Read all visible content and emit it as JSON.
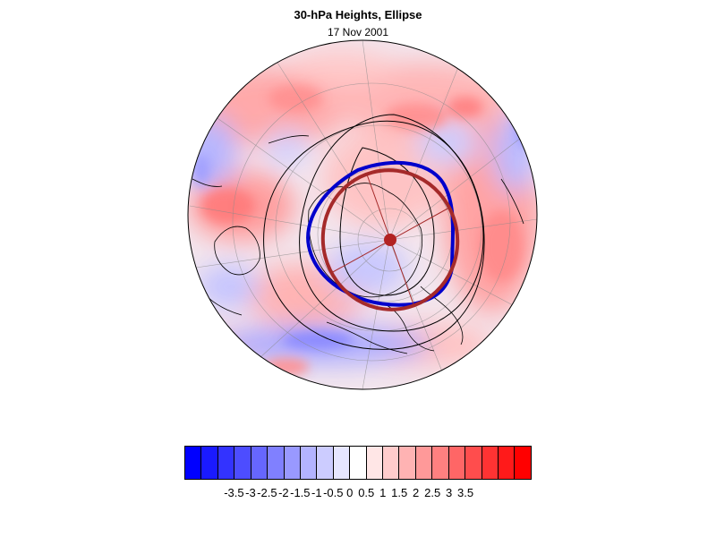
{
  "title": "30-hPa Heights, Ellipse",
  "date": "17 Nov 2001",
  "map": {
    "projection": "polar stereographic",
    "colors": {
      "anomaly_positive": "#ff2a2a",
      "anomaly_negative": "#2222ff",
      "height_contours": "#000000",
      "polar_vortex_edge": "#0000cc",
      "fitted_ellipse": "#a52a2a",
      "ellipse_center": "#b22222"
    },
    "layers": [
      "height anomaly shading",
      "30-hPa height contours",
      "coastlines",
      "vortex edge",
      "fitted ellipse"
    ]
  },
  "colorbar": {
    "colors": [
      "#0000ff",
      "#1a1aff",
      "#3333ff",
      "#4d4dff",
      "#6666ff",
      "#8080ff",
      "#9999ff",
      "#b3b3ff",
      "#ccccff",
      "#e6e6ff",
      "#ffffff",
      "#ffe6e6",
      "#ffcccc",
      "#ffb3b3",
      "#ff9999",
      "#ff8080",
      "#ff6666",
      "#ff4d4d",
      "#ff3333",
      "#ff1a1a",
      "#ff0000"
    ],
    "labels": [
      "-3.5",
      "-3",
      "-2.5",
      "-2",
      "-1.5",
      "-1",
      "-0.5",
      "0",
      "0.5",
      "1",
      "1.5",
      "2",
      "2.5",
      "3",
      "3.5"
    ]
  }
}
